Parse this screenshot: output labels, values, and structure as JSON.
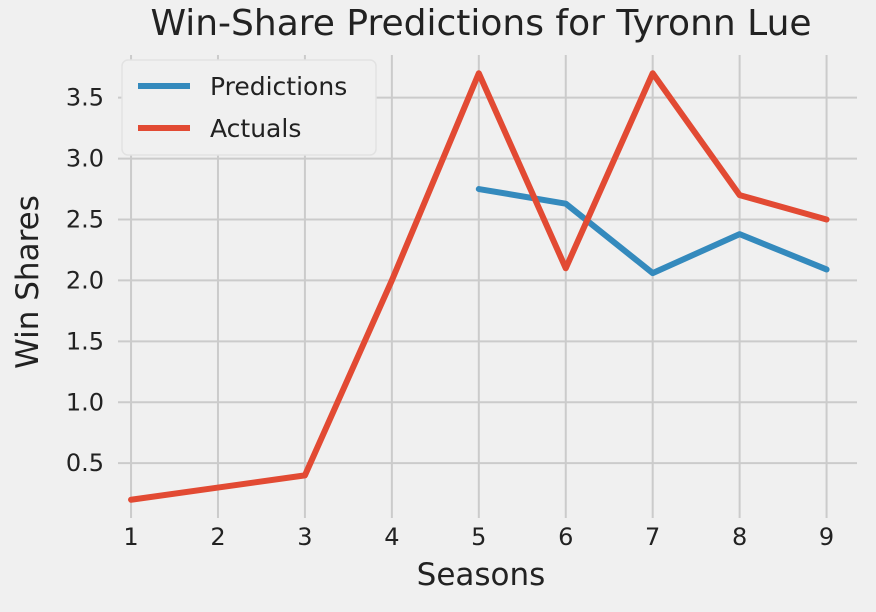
{
  "chart_data": {
    "type": "line",
    "title": "Win-Share Predictions for Tyronn Lue",
    "xlabel": "Seasons",
    "ylabel": "Win Shares",
    "x_ticks": [
      "1",
      "2",
      "3",
      "4",
      "5",
      "6",
      "7",
      "8",
      "9"
    ],
    "y_ticks": [
      "0.5",
      "1.0",
      "1.5",
      "2.0",
      "2.5",
      "3.0",
      "3.5"
    ],
    "xlim": [
      0.85,
      9.35
    ],
    "ylim": [
      0.05,
      3.85
    ],
    "grid": true,
    "legend_position": "top-left",
    "series": [
      {
        "name": "Predictions",
        "color": "#348ABD",
        "x": [
          5,
          6,
          7,
          8,
          9
        ],
        "y": [
          2.75,
          2.63,
          2.06,
          2.38,
          2.09
        ]
      },
      {
        "name": "Actuals",
        "color": "#E24A33",
        "x": [
          1,
          2,
          3,
          4,
          5,
          6,
          7,
          8,
          9
        ],
        "y": [
          0.2,
          0.3,
          0.4,
          2.0,
          3.7,
          2.1,
          3.7,
          2.7,
          2.5
        ]
      }
    ]
  }
}
